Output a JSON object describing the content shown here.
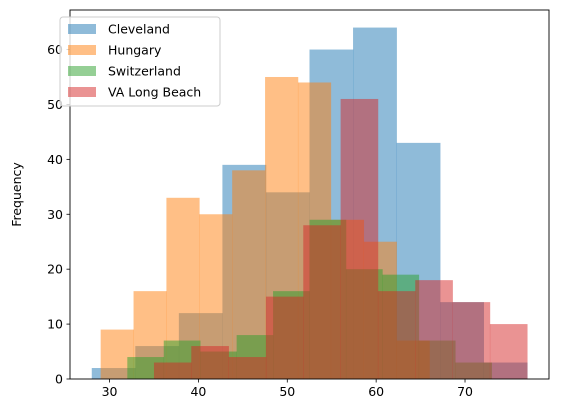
{
  "chart_data": {
    "type": "bar",
    "xlabel": "",
    "ylabel": "Frequency",
    "xlim": [
      25.55,
      79.45
    ],
    "ylim": [
      0,
      67.2
    ],
    "xticks": [
      30,
      40,
      50,
      60,
      70
    ],
    "yticks": [
      0,
      10,
      20,
      30,
      40,
      50,
      60
    ],
    "legend_position": "top-left",
    "grid": false,
    "series": [
      {
        "name": "Cleveland",
        "color": "#1f77b4",
        "bin_edges": [
          28,
          32.9,
          37.8,
          42.7,
          47.6,
          52.5,
          57.4,
          62.3,
          67.2,
          72.1,
          77
        ],
        "counts": [
          2,
          6,
          12,
          39,
          34,
          60,
          64,
          43,
          14,
          3
        ]
      },
      {
        "name": "Hungary",
        "color": "#ff7f0e",
        "bin_edges": [
          29,
          32.7,
          36.4,
          40.1,
          43.8,
          47.5,
          51.2,
          54.9,
          58.6,
          62.3,
          66
        ],
        "counts": [
          9,
          16,
          33,
          30,
          38,
          55,
          54,
          29,
          25,
          7
        ]
      },
      {
        "name": "Switzerland",
        "color": "#2ca02c",
        "bin_edges": [
          32,
          36.1,
          40.2,
          44.3,
          48.4,
          52.5,
          56.6,
          60.7,
          64.8,
          68.9,
          73
        ],
        "counts": [
          4,
          7,
          5,
          8,
          16,
          29,
          20,
          19,
          7,
          3
        ]
      },
      {
        "name": "VA Long Beach",
        "color": "#d62728",
        "bin_edges": [
          35,
          39.2,
          43.4,
          47.6,
          51.8,
          56,
          60.2,
          64.4,
          68.6,
          72.8,
          77
        ],
        "counts": [
          3,
          6,
          4,
          15,
          28,
          51,
          16,
          18,
          14,
          10
        ]
      }
    ]
  }
}
